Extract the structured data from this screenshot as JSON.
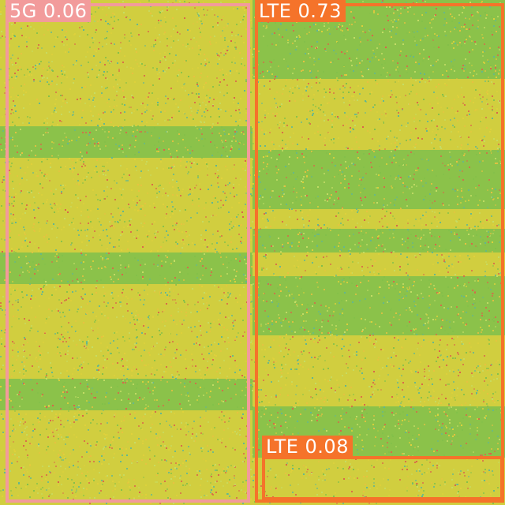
{
  "detections": [
    {
      "id": "5g",
      "label": "5G 0.06",
      "color": "#f29b9b"
    },
    {
      "id": "lte1",
      "label": "LTE 0.73",
      "color": "#f5732a"
    },
    {
      "id": "lte2",
      "label": "LTE 0.08",
      "color": "#f5732a"
    }
  ],
  "palette": {
    "green": "#7fbf4a",
    "yellow": "#e7d23a",
    "speck_red": "#e05a4a",
    "speck_teal": "#5ab59a"
  }
}
